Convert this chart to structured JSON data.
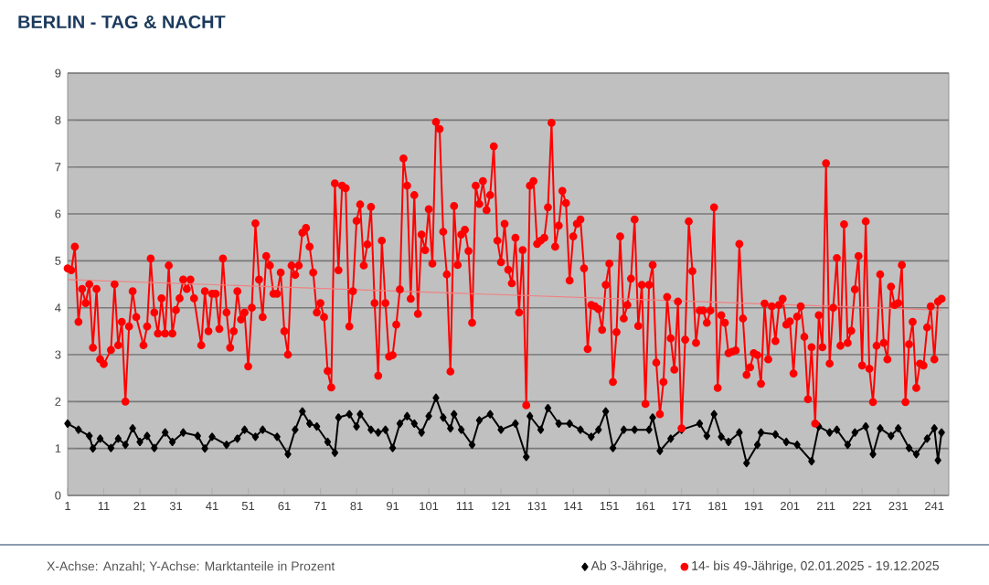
{
  "chart_data": {
    "type": "line",
    "title": "BERLIN - TAG & NACHT",
    "annotations": [
      "X-Achse: Anzahl; Y-Achse: Marktanteile in Prozent"
    ],
    "xlim": [
      1,
      245
    ],
    "xticks": [
      1,
      11,
      21,
      31,
      41,
      51,
      61,
      71,
      81,
      91,
      101,
      111,
      121,
      131,
      141,
      151,
      161,
      171,
      181,
      191,
      201,
      211,
      221,
      231,
      241
    ],
    "ylim": [
      0,
      9
    ],
    "yticks": [
      0,
      1,
      2,
      3,
      4,
      5,
      6,
      7,
      8,
      9
    ],
    "grid": "y",
    "legend": "bottom",
    "series": [
      {
        "name": "Ab 3-Jährige,",
        "color": "#000000",
        "marker": "diamond",
        "x": [
          1,
          4,
          7,
          8,
          10,
          13,
          15,
          17,
          19,
          21,
          23,
          25,
          28,
          30,
          33,
          37,
          39,
          41,
          45,
          48,
          50,
          53,
          55,
          59,
          62,
          64,
          66,
          68,
          70,
          73,
          75,
          76,
          79,
          81,
          82,
          85,
          87,
          89,
          91,
          93,
          95,
          97,
          99,
          101,
          103,
          105,
          107,
          108,
          110,
          113,
          115,
          118,
          121,
          125,
          128,
          129,
          132,
          134,
          137,
          140,
          143,
          146,
          148,
          150,
          152,
          155,
          158,
          162,
          163,
          165,
          168,
          171,
          176,
          178,
          180,
          182,
          184,
          187,
          189,
          192,
          193,
          197,
          200,
          203,
          207,
          209,
          212,
          214,
          217,
          219,
          222,
          224,
          226,
          229,
          231,
          234,
          236,
          239,
          241,
          242,
          243
        ],
        "values": [
          1.53,
          1.4,
          1.27,
          1.0,
          1.21,
          1.01,
          1.21,
          1.08,
          1.43,
          1.14,
          1.27,
          1.01,
          1.34,
          1.14,
          1.34,
          1.27,
          1.0,
          1.25,
          1.08,
          1.21,
          1.4,
          1.25,
          1.4,
          1.25,
          0.88,
          1.4,
          1.79,
          1.53,
          1.47,
          1.14,
          0.91,
          1.66,
          1.73,
          1.47,
          1.73,
          1.4,
          1.34,
          1.4,
          1.01,
          1.53,
          1.69,
          1.53,
          1.34,
          1.69,
          2.08,
          1.66,
          1.43,
          1.73,
          1.4,
          1.08,
          1.6,
          1.73,
          1.4,
          1.53,
          0.82,
          1.69,
          1.4,
          1.86,
          1.53,
          1.53,
          1.4,
          1.25,
          1.4,
          1.79,
          1.01,
          1.4,
          1.4,
          1.4,
          1.66,
          0.95,
          1.21,
          1.4,
          1.53,
          1.27,
          1.73,
          1.25,
          1.14,
          1.34,
          0.69,
          1.08,
          1.34,
          1.3,
          1.14,
          1.08,
          0.73,
          1.47,
          1.34,
          1.4,
          1.08,
          1.34,
          1.47,
          0.88,
          1.43,
          1.27,
          1.43,
          1.01,
          0.88,
          1.21,
          1.43,
          0.75,
          1.34
        ]
      },
      {
        "name": "14- bis 49-Jährige, 02.01.2025 - 19.12.2025",
        "color": "#ff0000",
        "marker": "circle",
        "x": [
          1,
          2,
          3,
          4,
          5,
          6,
          7,
          8,
          9,
          10,
          11,
          13,
          14,
          15,
          16,
          17,
          18,
          19,
          20,
          22,
          23,
          24,
          25,
          26,
          27,
          28,
          29,
          30,
          31,
          32,
          33,
          34,
          35,
          36,
          38,
          39,
          40,
          41,
          42,
          43,
          44,
          45,
          46,
          47,
          48,
          49,
          50,
          51,
          52,
          53,
          54,
          55,
          56,
          57,
          58,
          59,
          60,
          61,
          62,
          63,
          64,
          65,
          66,
          67,
          68,
          69,
          70,
          71,
          72,
          73,
          74,
          75,
          76,
          77,
          78,
          79,
          80,
          81,
          82,
          83,
          84,
          85,
          86,
          87,
          88,
          89,
          90,
          91,
          92,
          93,
          94,
          95,
          96,
          97,
          98,
          99,
          100,
          101,
          102,
          103,
          104,
          105,
          106,
          107,
          108,
          109,
          110,
          111,
          112,
          113,
          114,
          115,
          116,
          117,
          118,
          119,
          120,
          121,
          122,
          123,
          124,
          125,
          126,
          127,
          128,
          129,
          130,
          131,
          132,
          133,
          134,
          135,
          136,
          137,
          138,
          139,
          140,
          141,
          142,
          143,
          144,
          145,
          146,
          147,
          148,
          149,
          150,
          151,
          152,
          153,
          154,
          155,
          156,
          157,
          158,
          159,
          160,
          161,
          162,
          163,
          164,
          165,
          166,
          167,
          168,
          169,
          170,
          171,
          172,
          173,
          174,
          175,
          176,
          177,
          178,
          179,
          180,
          181,
          182,
          183,
          184,
          185,
          186,
          187,
          188,
          189,
          190,
          191,
          192,
          193,
          194,
          195,
          196,
          197,
          198,
          199,
          200,
          201,
          202,
          203,
          204,
          205,
          206,
          207,
          208,
          209,
          210,
          211,
          212,
          213,
          214,
          215,
          216,
          217,
          218,
          219,
          220,
          221,
          222,
          223,
          224,
          225,
          226,
          227,
          228,
          229,
          230,
          231,
          232,
          233,
          234,
          235,
          236,
          237,
          238,
          239,
          240,
          241,
          242,
          243
        ],
        "values": [
          4.84,
          4.8,
          5.3,
          3.7,
          4.4,
          4.1,
          4.5,
          3.15,
          4.4,
          2.9,
          2.8,
          3.1,
          4.5,
          3.2,
          3.7,
          2.0,
          3.6,
          4.35,
          3.8,
          3.2,
          3.6,
          5.05,
          3.9,
          3.45,
          4.2,
          3.45,
          4.9,
          3.45,
          3.95,
          4.2,
          4.6,
          4.4,
          4.6,
          4.2,
          3.2,
          4.35,
          3.5,
          4.3,
          4.3,
          3.55,
          5.05,
          3.9,
          3.15,
          3.5,
          4.35,
          3.75,
          3.9,
          2.75,
          4.0,
          5.8,
          4.6,
          3.8,
          5.1,
          4.9,
          4.3,
          4.3,
          4.75,
          3.5,
          3.0,
          4.9,
          4.7,
          4.9,
          5.6,
          5.7,
          5.3,
          4.75,
          3.9,
          4.1,
          3.8,
          2.65,
          2.3,
          6.65,
          4.8,
          6.6,
          6.55,
          3.6,
          4.35,
          5.85,
          6.2,
          4.9,
          5.35,
          6.15,
          4.1,
          2.55,
          5.43,
          4.1,
          2.96,
          2.99,
          3.64,
          4.39,
          7.18,
          6.6,
          4.19,
          6.4,
          3.87,
          5.56,
          5.23,
          6.1,
          4.94,
          7.96,
          7.81,
          5.62,
          4.71,
          2.64,
          6.17,
          4.91,
          5.56,
          5.66,
          5.21,
          3.68,
          6.6,
          6.21,
          6.7,
          6.08,
          6.4,
          7.44,
          5.43,
          4.97,
          5.79,
          4.81,
          4.52,
          5.49,
          3.9,
          5.23,
          1.92,
          6.6,
          6.7,
          5.36,
          5.43,
          5.49,
          6.14,
          7.94,
          5.3,
          5.75,
          6.49,
          6.23,
          4.58,
          5.52,
          5.79,
          5.88,
          4.84,
          3.12,
          4.06,
          4.03,
          3.97,
          3.53,
          4.49,
          4.94,
          2.42,
          3.48,
          5.52,
          3.77,
          4.06,
          4.62,
          5.88,
          3.61,
          4.49,
          1.95,
          4.49,
          4.91,
          2.83,
          1.73,
          2.42,
          4.23,
          3.35,
          2.68,
          4.13,
          1.43,
          3.32,
          5.84,
          4.78,
          3.25,
          3.94,
          3.94,
          3.68,
          3.94,
          6.14,
          2.29,
          3.84,
          3.68,
          3.03,
          3.06,
          3.09,
          5.36,
          3.77,
          2.57,
          2.73,
          3.03,
          2.99,
          2.38,
          4.09,
          2.9,
          4.03,
          3.29,
          4.06,
          4.19,
          3.64,
          3.71,
          2.6,
          3.81,
          4.03,
          3.38,
          2.05,
          3.16,
          1.53,
          3.84,
          3.16,
          7.08,
          2.81,
          4.0,
          5.06,
          3.19,
          5.78,
          3.25,
          3.51,
          4.39,
          5.1,
          2.77,
          5.84,
          2.7,
          1.99,
          3.19,
          4.71,
          3.25,
          2.9,
          4.45,
          4.06,
          4.1,
          4.91,
          1.99,
          3.22,
          3.7,
          2.29,
          2.81,
          2.77,
          3.58,
          4.03,
          2.9,
          4.13,
          4.19
        ]
      },
      {
        "type": "line",
        "color": "#f08080",
        "marker": "none",
        "x": [
          1,
          243
        ],
        "values": [
          4.6,
          3.95
        ]
      }
    ]
  }
}
